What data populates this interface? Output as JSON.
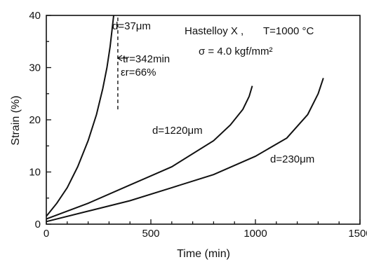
{
  "chart_data": {
    "type": "line",
    "title": "",
    "xlabel": "Time (min)",
    "ylabel": "Strain (%)",
    "xlim": [
      0,
      1500
    ],
    "ylim": [
      0,
      40
    ],
    "x_ticks": [
      0,
      500,
      1000,
      1500
    ],
    "y_ticks": [
      0,
      10,
      20,
      30,
      40
    ],
    "x_tick_labels": [
      "0",
      "500",
      "1000",
      "1500"
    ],
    "y_tick_labels": [
      "0",
      "10",
      "20",
      "30",
      "40"
    ],
    "grid": false,
    "conditions": {
      "material": "Hastelloy X ,",
      "temperature": "T=1000 °C",
      "stress": "σ = 4.0 kgf/mm²"
    },
    "series": [
      {
        "name": "d=37μm",
        "x": [
          0,
          50,
          100,
          150,
          200,
          240,
          270,
          290,
          305,
          315,
          322
        ],
        "y": [
          1.5,
          4,
          7,
          11,
          16,
          21,
          26,
          30,
          34,
          37.5,
          40
        ]
      },
      {
        "name": "d=1220μm",
        "x": [
          0,
          200,
          400,
          600,
          800,
          880,
          940,
          970,
          985
        ],
        "y": [
          1,
          4,
          7.5,
          11,
          16,
          19,
          22,
          24.5,
          26.5
        ]
      },
      {
        "name": "d=230μm",
        "x": [
          0,
          200,
          400,
          600,
          800,
          1000,
          1150,
          1250,
          1300,
          1325
        ],
        "y": [
          0.5,
          2.5,
          4.5,
          7,
          9.5,
          13,
          16.5,
          21,
          25,
          28
        ]
      }
    ],
    "annotations": {
      "rupture_line_x": 342,
      "rupture_line_y": [
        22,
        40
      ],
      "rupture_time": "tr=342min",
      "rupture_strain": "εr=66%"
    }
  }
}
